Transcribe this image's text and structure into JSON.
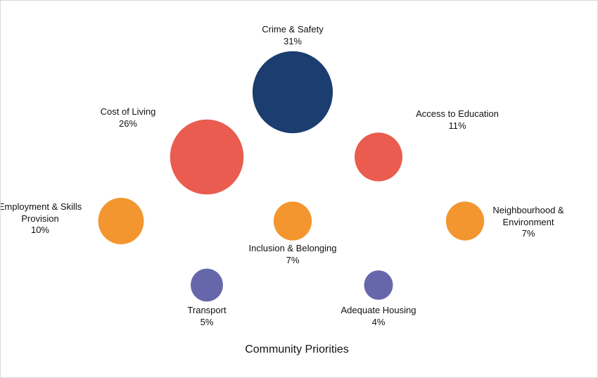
{
  "chart_data": {
    "type": "bubble",
    "title": "Community Priorities",
    "unit": "%",
    "legend": "none",
    "grid": false,
    "points": [
      {
        "label_lines": [
          "Crime & Safety"
        ],
        "value": 31,
        "value_label": "31%",
        "color": "#1b3d6f"
      },
      {
        "label_lines": [
          "Cost of Living"
        ],
        "value": 26,
        "value_label": "26%",
        "color": "#e95c4f"
      },
      {
        "label_lines": [
          "Access to Education"
        ],
        "value": 11,
        "value_label": "11%",
        "color": "#e95c4f"
      },
      {
        "label_lines": [
          "Employment & Skills",
          "Provision"
        ],
        "value": 10,
        "value_label": "10%",
        "color": "#f3962f"
      },
      {
        "label_lines": [
          "Inclusion & Belonging"
        ],
        "value": 7,
        "value_label": "7%",
        "color": "#f3962f"
      },
      {
        "label_lines": [
          "Neighbourhood &",
          "Environment"
        ],
        "value": 7,
        "value_label": "7%",
        "color": "#f3962f"
      },
      {
        "label_lines": [
          "Transport"
        ],
        "value": 5,
        "value_label": "5%",
        "color": "#6667ab"
      },
      {
        "label_lines": [
          "Adequate Housing"
        ],
        "value": 4,
        "value_label": "4%",
        "color": "#6667ab"
      }
    ]
  }
}
